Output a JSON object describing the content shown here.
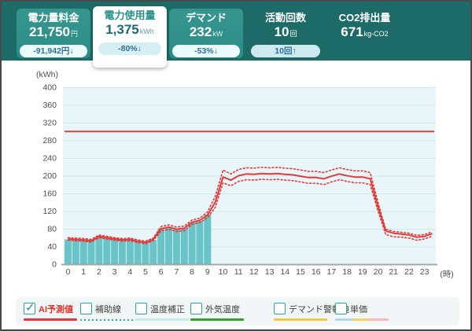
{
  "topbar": {
    "cards": [
      {
        "label": "電力量料金",
        "value": "21,750",
        "unit": "円",
        "badge": "-91,942円↓",
        "active": false
      },
      {
        "label": "電力使用量",
        "value": "1,375",
        "unit": "kWh",
        "badge": "-80%↓",
        "active": true
      },
      {
        "label": "デマンド",
        "value": "232",
        "unit": "kW",
        "badge": "-53%↓",
        "active": false
      },
      {
        "label": "活動回数",
        "value": "10",
        "unit": "回",
        "badge": "10回↑",
        "active": false
      },
      {
        "label": "CO2排出量",
        "value": "671",
        "unit": "kg-CO2",
        "badge": "",
        "active": false
      }
    ],
    "colors": {
      "bar_bg": "#1c6b67",
      "card_bg": "#2f938d",
      "active_card_bg": "#ffffff",
      "badge_text": "#2f6f96"
    }
  },
  "chart_data": {
    "type": "bar+line",
    "y_axis": {
      "unit_label": "(kWh)",
      "min": 0,
      "max": 400,
      "ticks": [
        0,
        40,
        80,
        120,
        160,
        200,
        240,
        280,
        320,
        360,
        400
      ]
    },
    "x_axis": {
      "unit_label": "(時)",
      "ticks": [
        0,
        1,
        2,
        3,
        4,
        5,
        6,
        7,
        8,
        9,
        10,
        11,
        12,
        13,
        14,
        15,
        16,
        17,
        18,
        19,
        20,
        21,
        22,
        23
      ]
    },
    "grid": true,
    "plot_bg": "#e9f6f9",
    "grid_color": "#cfe9ef",
    "threshold_line": {
      "value": 300,
      "color": "#e23b3b"
    },
    "bars": {
      "color": "#68c4c6",
      "x_start": 0,
      "x_step": 0.5,
      "values": [
        56,
        56,
        54,
        53,
        62,
        59,
        56,
        54,
        55,
        52,
        49,
        55,
        79,
        83,
        78,
        80,
        94,
        98,
        112
      ]
    },
    "series": [
      {
        "id": "forecast-upper-band",
        "style": "dotted",
        "color": "#e23b3b",
        "x_start": 0,
        "x_step": 0.5,
        "values": [
          60,
          59,
          58,
          56,
          66,
          63,
          60,
          58,
          59,
          55,
          52,
          59,
          85,
          89,
          84,
          86,
          100,
          104,
          118,
          153,
          213,
          204,
          214,
          218,
          217,
          219,
          218,
          219,
          217,
          216,
          213,
          210,
          210,
          207,
          213,
          218,
          214,
          211,
          211,
          207,
          140,
          79,
          74,
          72,
          70,
          65,
          67,
          73
        ]
      },
      {
        "id": "forecast-lower-band",
        "style": "dotted",
        "color": "#e23b3b",
        "x_start": 0,
        "x_step": 0.5,
        "values": [
          54,
          53,
          52,
          50,
          60,
          57,
          54,
          52,
          53,
          49,
          46,
          53,
          75,
          79,
          74,
          76,
          90,
          94,
          105,
          128,
          184,
          177,
          187,
          191,
          190,
          192,
          191,
          192,
          190,
          189,
          186,
          183,
          183,
          180,
          186,
          191,
          187,
          184,
          184,
          180,
          120,
          67,
          62,
          61,
          59,
          54,
          57,
          63
        ]
      },
      {
        "id": "ai-forecast",
        "name": "AI予測値",
        "style": "solid",
        "color": "#e23b3b",
        "x_start": 0,
        "x_step": 0.5,
        "values": [
          57,
          56,
          55,
          53,
          63,
          60,
          57,
          55,
          56,
          52,
          49,
          56,
          80,
          84,
          79,
          81,
          95,
          99,
          111,
          140,
          197,
          190,
          200,
          204,
          203,
          205,
          204,
          205,
          203,
          202,
          199,
          196,
          196,
          193,
          199,
          204,
          200,
          197,
          197,
          193,
          130,
          75,
          70,
          68,
          66,
          61,
          63,
          69
        ]
      }
    ]
  },
  "legend": {
    "items": [
      {
        "label": "AI予測値",
        "checked": true,
        "swatch": "red-solid",
        "color": "#e23b3b"
      },
      {
        "label": "補助線",
        "checked": false,
        "swatch": "teal-dotted",
        "color": "#2fa39e"
      },
      {
        "label": "温度補正",
        "checked": false,
        "swatch": "cyan-solid",
        "color": "#c3ebea"
      },
      {
        "label": "外気温度",
        "checked": false,
        "swatch": "green-solid",
        "color": "#35a02c"
      },
      {
        "label": "デマンド警報値",
        "checked": false,
        "swatch": "yellow-solid",
        "color": "#f2c84b"
      },
      {
        "label": "単価",
        "checked": false,
        "swatch": "multi-segment",
        "colors": [
          "#b9d5ec",
          "#f0d273",
          "#f5bac5"
        ]
      }
    ]
  }
}
